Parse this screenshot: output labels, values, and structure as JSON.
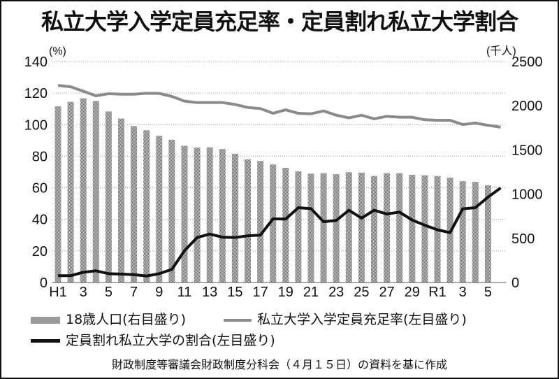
{
  "chart_data": {
    "type": "bar+line",
    "title": "私立大学入学定員充足率・定員割れ私立大学割合",
    "left_axis": {
      "unit_label": "(%)",
      "ylim": [
        0,
        140
      ],
      "ticks": [
        0,
        20,
        40,
        60,
        80,
        100,
        120,
        140
      ]
    },
    "right_axis": {
      "unit_label": "(千人)",
      "ylim": [
        0,
        2500
      ],
      "ticks": [
        0,
        500,
        1000,
        1500,
        2000,
        2500
      ]
    },
    "x": [
      "H1",
      "H2",
      "H3",
      "H4",
      "H5",
      "H6",
      "H7",
      "H8",
      "H9",
      "H10",
      "H11",
      "H12",
      "H13",
      "H14",
      "H15",
      "H16",
      "H17",
      "H18",
      "H19",
      "H20",
      "H21",
      "H22",
      "H23",
      "H24",
      "H25",
      "H26",
      "H27",
      "H28",
      "H29",
      "H30",
      "R1",
      "R2",
      "R3",
      "R4",
      "R5",
      "R6"
    ],
    "x_tick_labels": [
      "H1",
      "3",
      "5",
      "7",
      "9",
      "11",
      "13",
      "15",
      "17",
      "19",
      "21",
      "23",
      "25",
      "27",
      "29",
      "R1",
      "3",
      "5"
    ],
    "x_tick_indices": [
      0,
      2,
      4,
      6,
      8,
      10,
      12,
      14,
      16,
      18,
      20,
      22,
      24,
      26,
      28,
      30,
      32,
      34
    ],
    "grid": true,
    "series": [
      {
        "name": "18歳人口(右目盛り)",
        "type": "bar",
        "axis": "right",
        "color": "#9a9a9a",
        "values": [
          1993,
          2044,
          2084,
          2054,
          1935,
          1855,
          1770,
          1722,
          1659,
          1616,
          1547,
          1526,
          1529,
          1510,
          1457,
          1393,
          1375,
          1335,
          1298,
          1258,
          1232,
          1237,
          1226,
          1248,
          1242,
          1205,
          1237,
          1237,
          1218,
          1213,
          1205,
          1186,
          1146,
          1139,
          1101,
          null
        ]
      },
      {
        "name": "私立大学入学定員充足率(左目盛り)",
        "type": "line",
        "axis": "left",
        "color": "#8a8a8a",
        "values": [
          124.9,
          124.0,
          121.2,
          118.3,
          119.6,
          119.3,
          119.3,
          119.9,
          119.8,
          117.9,
          114.9,
          114.0,
          114.0,
          114.0,
          112.8,
          110.9,
          110.2,
          107.2,
          109.4,
          107.2,
          106.9,
          108.7,
          106.0,
          104.3,
          106.0,
          103.7,
          105.3,
          104.7,
          104.7,
          103.1,
          102.8,
          102.8,
          100.1,
          101.0,
          99.6,
          98.4
        ]
      },
      {
        "name": "定員割れ私立大学の割合(左目盛り)",
        "type": "line",
        "axis": "left",
        "color": "#111111",
        "values": [
          4.3,
          4.3,
          6.5,
          7.4,
          5.6,
          5.3,
          5.0,
          4.1,
          5.6,
          8.3,
          20.1,
          28.5,
          30.7,
          28.7,
          28.5,
          29.6,
          30.0,
          40.3,
          40.2,
          47.4,
          46.8,
          38.5,
          39.3,
          45.8,
          40.8,
          45.8,
          43.4,
          44.6,
          39.6,
          36.3,
          33.4,
          31.6,
          46.7,
          47.4,
          54.1,
          59.9
        ]
      }
    ],
    "legend": [
      "18歳人口(右目盛り)",
      "私立大学入学定員充足率(左目盛り)",
      "定員割れ私立大学の割合(左目盛り)"
    ],
    "legend_placement": "bottom",
    "source": "財政制度等審議会財政制度分科会（４月１５日）の資料を基に作成"
  }
}
